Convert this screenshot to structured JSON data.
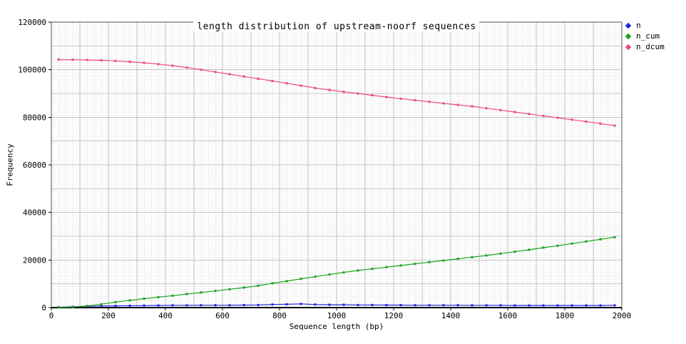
{
  "title": "length distribution of upstream-noorf sequences",
  "colors": {
    "n": "#2222dd",
    "n_cum": "#17a317",
    "n_dcum": "#ea4a78",
    "grid_major": "#c6c6c6",
    "grid_minor": "#f0f0f0",
    "border": "#555555",
    "axis": "#000000",
    "text": "#000000",
    "background": "#ffffff"
  },
  "legend": {
    "position": "top-right-outside",
    "items": [
      {
        "label": "n",
        "color": "#2222dd"
      },
      {
        "label": "n_cum",
        "color": "#17a317"
      },
      {
        "label": "n_dcum",
        "color": "#ea4a78"
      }
    ]
  },
  "chart_data": {
    "type": "line",
    "title": "length distribution of upstream-noorf sequences",
    "xlabel": "Sequence length (bp)",
    "ylabel": "Frequency",
    "xlim": [
      0,
      2000
    ],
    "ylim": [
      0,
      120000
    ],
    "xticks": [
      0,
      200,
      400,
      600,
      800,
      1000,
      1200,
      1400,
      1600,
      1800,
      2000
    ],
    "yticks": [
      0,
      20000,
      40000,
      60000,
      80000,
      100000,
      120000
    ],
    "x_major_grid_step": 100,
    "y_major_grid_step": 10000,
    "grid": true,
    "legend_position": "top-right-outside",
    "marker": "square",
    "x": [
      25,
      75,
      125,
      175,
      225,
      275,
      325,
      375,
      425,
      475,
      525,
      575,
      625,
      675,
      725,
      775,
      825,
      875,
      925,
      975,
      1025,
      1075,
      1125,
      1175,
      1225,
      1275,
      1325,
      1375,
      1425,
      1475,
      1525,
      1575,
      1625,
      1675,
      1725,
      1775,
      1825,
      1875,
      1925,
      1975
    ],
    "series": [
      {
        "name": "n",
        "color": "#2222dd",
        "values": [
          150,
          350,
          550,
          650,
          750,
          800,
          850,
          900,
          950,
          950,
          1000,
          1000,
          1000,
          1050,
          1100,
          1300,
          1400,
          1550,
          1300,
          1200,
          1200,
          1100,
          1100,
          1050,
          1050,
          1000,
          1000,
          1000,
          1000,
          950,
          950,
          950,
          900,
          900,
          900,
          900,
          900,
          900,
          900,
          950
        ]
      },
      {
        "name": "n_cum",
        "color": "#17a317",
        "values": [
          50,
          250,
          700,
          1400,
          2300,
          3050,
          3750,
          4400,
          5000,
          5700,
          6350,
          7000,
          7700,
          8400,
          9200,
          10200,
          11100,
          12100,
          13000,
          13900,
          14800,
          15600,
          16300,
          17000,
          17700,
          18400,
          19100,
          19800,
          20500,
          21200,
          21900,
          22700,
          23500,
          24300,
          25200,
          26000,
          26900,
          27800,
          28700,
          29600
        ]
      },
      {
        "name": "n_dcum",
        "color": "#ea4a78",
        "values": [
          104250,
          104200,
          104100,
          103950,
          103700,
          103350,
          102900,
          102350,
          101700,
          100900,
          100000,
          99050,
          98100,
          97150,
          96200,
          95250,
          94300,
          93300,
          92300,
          91500,
          90700,
          90000,
          89250,
          88500,
          87800,
          87150,
          86500,
          85850,
          85200,
          84600,
          83800,
          83000,
          82200,
          81400,
          80600,
          79800,
          79000,
          78200,
          77350,
          76500
        ]
      }
    ]
  }
}
